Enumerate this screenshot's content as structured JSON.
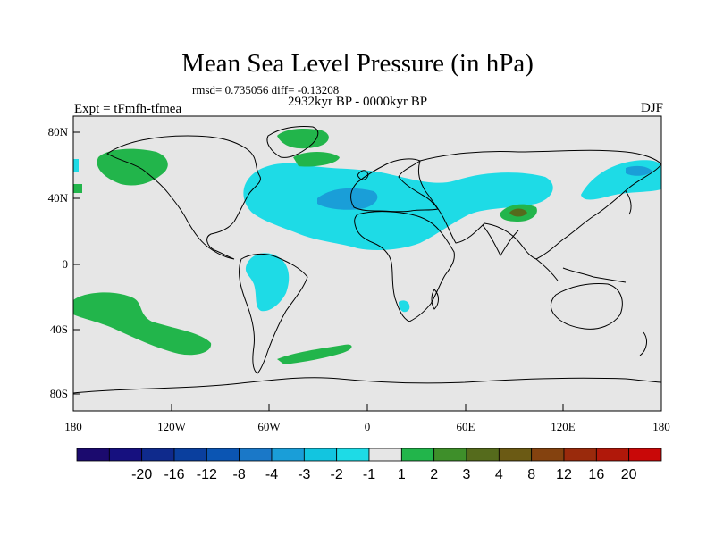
{
  "header": {
    "title": "Mean Sea Level Pressure (in hPa)",
    "stats": "rmsd= 0.735056 diff= -0.13208",
    "period": "2932kyr BP - 0000kyr BP",
    "experiment": "Expt = tFmfh-tfmea",
    "season": "DJF"
  },
  "axes": {
    "x_ticks": [
      "180",
      "120W",
      "60W",
      "0",
      "60E",
      "120E",
      "180"
    ],
    "y_ticks": [
      "80N",
      "40N",
      "0",
      "40S",
      "80S"
    ]
  },
  "colorbar": {
    "labels": [
      "-20",
      "-16",
      "-12",
      "-8",
      "-4",
      "-3",
      "-2",
      "-1",
      "1",
      "2",
      "3",
      "4",
      "8",
      "12",
      "16",
      "20"
    ],
    "colors": [
      "#1b0a6e",
      "#16107f",
      "#0f2a8c",
      "#0a3f9e",
      "#0b55b3",
      "#1a78c8",
      "#1a9ed8",
      "#12c5e0",
      "#1edbe6",
      "#e6e6e6",
      "#22b54b",
      "#3e8f2a",
      "#556b1c",
      "#6b5a14",
      "#84420f",
      "#9a2a0c",
      "#b0180a",
      "#c90808"
    ]
  },
  "colors": {
    "ocean": "#e6e6e6",
    "neg_weak": "#1edbe6",
    "neg_mid": "#1a9ed8",
    "pos_weak": "#22b54b",
    "pos_mid": "#556b1c",
    "coast": "#000000"
  }
}
